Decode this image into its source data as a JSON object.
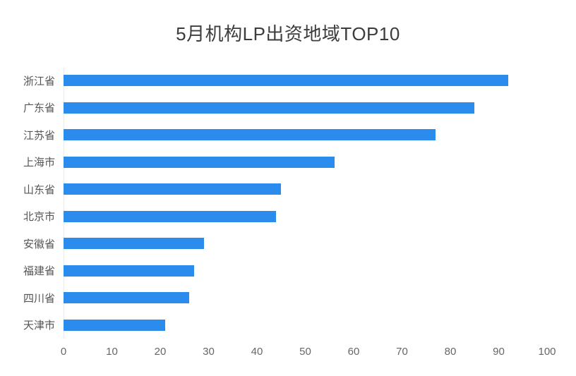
{
  "chart_data": {
    "type": "bar",
    "orientation": "horizontal",
    "title": "5月机构LP出资地域TOP10",
    "categories": [
      "浙江省",
      "广东省",
      "江苏省",
      "上海市",
      "山东省",
      "北京市",
      "安徽省",
      "福建省",
      "四川省",
      "天津市"
    ],
    "values": [
      92,
      85,
      77,
      56,
      45,
      44,
      29,
      27,
      26,
      21
    ],
    "xlabel": "",
    "ylabel": "",
    "xlim": [
      0,
      100
    ],
    "x_ticks": [
      0,
      10,
      20,
      30,
      40,
      50,
      60,
      70,
      80,
      90,
      100
    ],
    "bar_color": "#2b8ced",
    "axis_line_color": "#ececec",
    "grid": false,
    "legend": "none"
  }
}
